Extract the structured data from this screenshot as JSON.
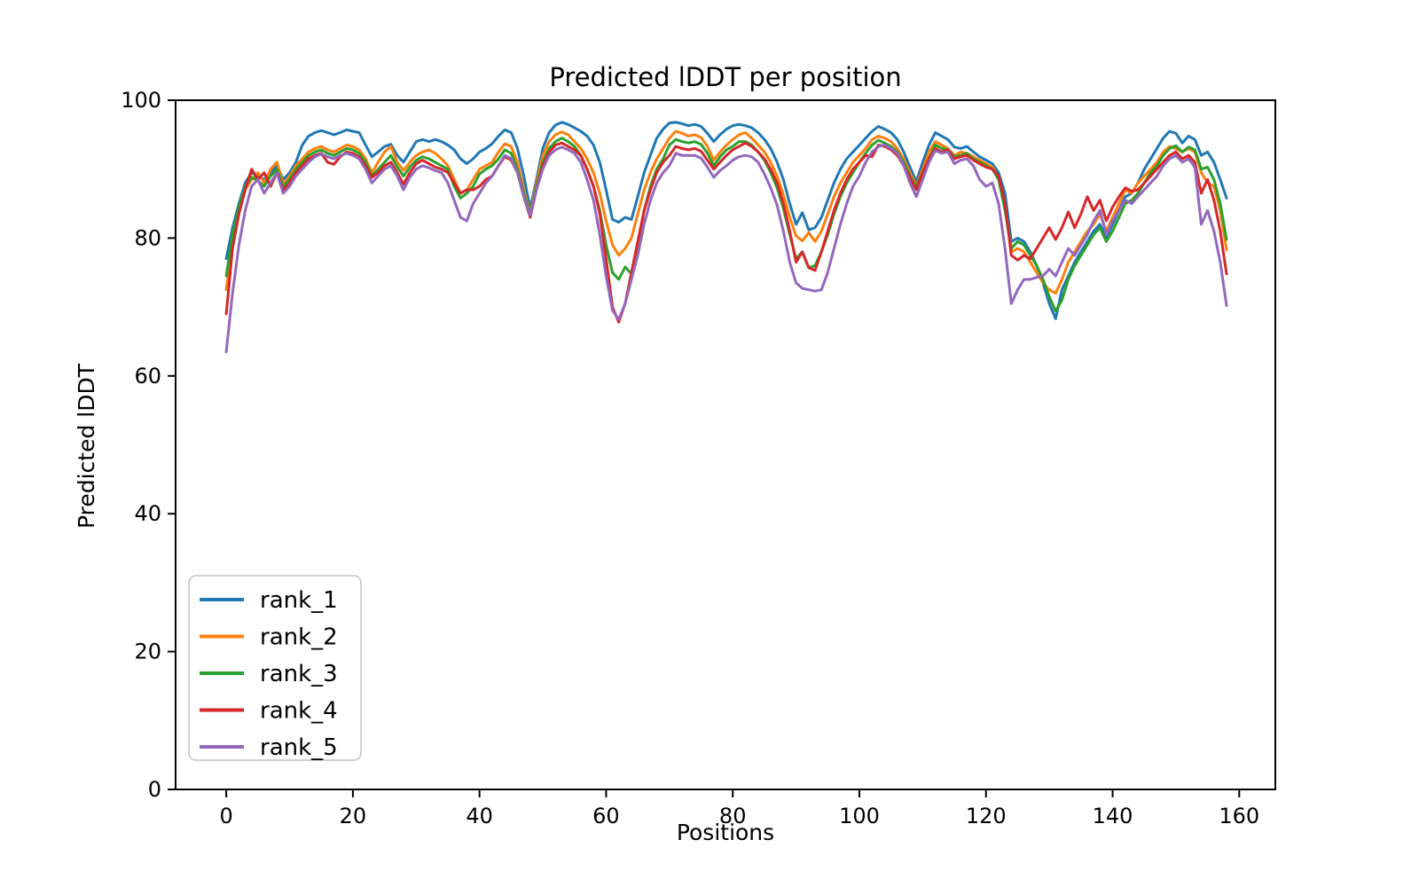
{
  "chart_data": {
    "type": "line",
    "title": "Predicted lDDT per position",
    "xlabel": "Positions",
    "ylabel": "Predicted lDDT",
    "xlim": [
      -8,
      165.7
    ],
    "ylim": [
      0,
      100
    ],
    "xticks": [
      0,
      20,
      40,
      60,
      80,
      100,
      120,
      140,
      160
    ],
    "yticks": [
      0,
      20,
      40,
      60,
      80,
      100
    ],
    "grid": false,
    "legend_position": "lower-left",
    "axis_color": "#000000",
    "legend_border_color": "#cccccc",
    "x_start": 0,
    "x_step": 1,
    "series": [
      {
        "name": "rank_1",
        "color": "#1f77b4",
        "values": [
          77.0,
          81.5,
          85.0,
          88.0,
          89.5,
          89.0,
          88.5,
          89.5,
          90.5,
          88.5,
          89.5,
          91.0,
          93.5,
          94.8,
          95.3,
          95.6,
          95.3,
          95.0,
          95.3,
          95.7,
          95.5,
          95.3,
          93.5,
          91.8,
          92.5,
          93.3,
          93.6,
          92.0,
          91.0,
          92.5,
          94.0,
          94.3,
          94.0,
          94.3,
          94.0,
          93.5,
          92.8,
          91.5,
          90.8,
          91.5,
          92.5,
          93.0,
          93.7,
          94.8,
          95.7,
          95.3,
          93.0,
          89.0,
          84.3,
          88.5,
          93.0,
          95.3,
          96.4,
          96.8,
          96.5,
          96.0,
          95.5,
          94.8,
          93.5,
          91.0,
          87.0,
          82.7,
          82.3,
          83.0,
          82.7,
          86.0,
          89.5,
          92.0,
          94.5,
          95.8,
          96.7,
          96.8,
          96.6,
          96.3,
          96.5,
          96.2,
          95.2,
          94.0,
          95.0,
          95.8,
          96.3,
          96.5,
          96.3,
          96.0,
          95.3,
          94.3,
          93.0,
          91.0,
          88.5,
          85.0,
          82.0,
          83.7,
          81.2,
          81.5,
          83.0,
          85.5,
          88.0,
          90.0,
          91.5,
          92.5,
          93.5,
          94.5,
          95.5,
          96.2,
          95.8,
          95.3,
          94.3,
          92.5,
          90.3,
          88.2,
          91.0,
          93.5,
          95.3,
          94.8,
          94.3,
          93.2,
          93.0,
          93.3,
          92.5,
          91.8,
          91.3,
          90.8,
          89.5,
          86.5,
          79.5,
          80.0,
          79.5,
          78.0,
          76.0,
          73.5,
          70.5,
          68.3,
          72.5,
          74.5,
          76.5,
          78.0,
          79.5,
          81.0,
          82.0,
          80.0,
          82.0,
          84.0,
          86.0,
          86.5,
          88.0,
          90.0,
          91.5,
          93.0,
          94.5,
          95.5,
          95.2,
          93.8,
          94.8,
          94.3,
          92.0,
          92.5,
          91.0,
          88.5,
          85.8
        ]
      },
      {
        "name": "rank_2",
        "color": "#ff7f0e",
        "values": [
          72.5,
          79.5,
          84.0,
          87.0,
          88.5,
          89.5,
          88.0,
          90.0,
          91.0,
          87.8,
          89.0,
          90.5,
          91.5,
          92.5,
          93.0,
          93.3,
          92.8,
          92.5,
          93.0,
          93.5,
          93.3,
          92.8,
          91.5,
          89.5,
          91.0,
          92.5,
          93.3,
          91.0,
          89.8,
          91.0,
          92.0,
          92.5,
          92.8,
          92.3,
          91.5,
          90.5,
          88.5,
          86.5,
          87.0,
          88.5,
          90.0,
          90.5,
          91.0,
          92.5,
          93.7,
          93.3,
          91.0,
          87.0,
          83.7,
          88.0,
          92.0,
          94.0,
          95.0,
          95.4,
          95.0,
          94.0,
          93.0,
          91.5,
          89.5,
          86.5,
          82.5,
          79.0,
          77.5,
          78.5,
          80.0,
          83.5,
          87.0,
          89.5,
          91.5,
          93.0,
          94.5,
          95.5,
          95.2,
          94.8,
          95.0,
          94.6,
          93.3,
          91.3,
          92.5,
          93.5,
          94.3,
          95.0,
          95.3,
          94.5,
          93.5,
          92.5,
          91.0,
          89.0,
          86.3,
          83.0,
          80.3,
          79.6,
          80.8,
          79.5,
          81.0,
          83.5,
          86.0,
          88.0,
          89.5,
          91.0,
          92.0,
          93.0,
          94.3,
          94.8,
          94.5,
          94.0,
          93.0,
          91.5,
          89.5,
          87.6,
          90.0,
          92.5,
          94.0,
          93.5,
          93.0,
          92.0,
          92.5,
          92.3,
          91.8,
          91.3,
          90.8,
          90.3,
          88.8,
          84.5,
          78.0,
          78.5,
          78.0,
          76.5,
          75.0,
          73.5,
          72.5,
          72.0,
          74.0,
          76.5,
          78.0,
          79.5,
          81.0,
          82.0,
          83.5,
          81.0,
          83.0,
          85.0,
          87.0,
          86.5,
          88.0,
          89.0,
          90.0,
          91.0,
          92.5,
          93.3,
          93.0,
          92.5,
          93.0,
          92.5,
          89.5,
          88.0,
          87.5,
          84.0,
          78.3
        ]
      },
      {
        "name": "rank_3",
        "color": "#2ca02c",
        "values": [
          74.5,
          80.5,
          84.5,
          87.5,
          88.8,
          88.3,
          87.5,
          89.0,
          90.0,
          87.5,
          88.5,
          90.0,
          91.0,
          92.0,
          92.5,
          92.8,
          92.3,
          92.0,
          92.5,
          93.0,
          92.8,
          92.3,
          91.0,
          89.0,
          90.0,
          91.0,
          92.0,
          90.3,
          89.0,
          90.3,
          91.3,
          91.8,
          91.5,
          91.0,
          90.5,
          90.0,
          87.5,
          85.8,
          86.5,
          87.5,
          89.3,
          90.0,
          90.5,
          91.5,
          92.8,
          92.3,
          90.0,
          86.5,
          83.5,
          87.5,
          91.0,
          93.0,
          94.0,
          94.5,
          94.0,
          93.3,
          92.0,
          90.0,
          87.5,
          84.0,
          79.0,
          75.0,
          74.0,
          75.8,
          74.8,
          79.0,
          84.0,
          87.5,
          90.0,
          91.5,
          93.5,
          94.3,
          94.0,
          93.8,
          94.0,
          93.6,
          92.3,
          90.5,
          91.8,
          92.8,
          93.3,
          94.0,
          94.0,
          93.5,
          92.5,
          91.3,
          89.5,
          87.3,
          84.3,
          80.5,
          77.0,
          78.0,
          75.7,
          76.0,
          78.0,
          80.5,
          83.5,
          86.0,
          88.0,
          89.5,
          91.0,
          92.3,
          93.5,
          94.2,
          93.8,
          93.3,
          92.5,
          91.0,
          89.0,
          87.4,
          89.5,
          91.5,
          93.5,
          93.0,
          92.8,
          91.8,
          92.0,
          92.3,
          91.5,
          91.0,
          90.5,
          90.0,
          88.5,
          84.0,
          78.5,
          79.5,
          79.0,
          77.5,
          76.0,
          74.0,
          71.5,
          69.4,
          71.0,
          74.0,
          76.0,
          77.5,
          79.0,
          80.5,
          81.5,
          79.5,
          81.0,
          83.0,
          85.0,
          85.5,
          86.5,
          88.0,
          89.5,
          90.5,
          92.0,
          93.0,
          93.4,
          92.5,
          93.2,
          92.8,
          90.0,
          90.3,
          88.5,
          85.0,
          79.8
        ]
      },
      {
        "name": "rank_4",
        "color": "#d62728",
        "values": [
          69.0,
          78.5,
          83.5,
          87.0,
          90.0,
          88.5,
          89.5,
          87.5,
          89.5,
          87.0,
          88.0,
          89.5,
          90.5,
          91.5,
          92.0,
          92.3,
          91.0,
          90.7,
          91.8,
          92.5,
          92.3,
          91.8,
          90.5,
          88.8,
          89.5,
          90.5,
          91.0,
          89.5,
          87.8,
          89.5,
          90.8,
          91.3,
          90.8,
          90.3,
          90.0,
          89.5,
          88.0,
          86.5,
          87.0,
          87.0,
          87.5,
          88.5,
          89.0,
          90.5,
          91.8,
          91.3,
          89.5,
          86.0,
          83.0,
          87.0,
          90.5,
          92.5,
          93.5,
          93.8,
          93.3,
          92.8,
          92.0,
          90.0,
          87.5,
          83.5,
          77.0,
          70.0,
          67.8,
          70.5,
          75.0,
          79.5,
          84.0,
          87.0,
          89.5,
          91.0,
          92.0,
          93.3,
          93.0,
          92.8,
          93.0,
          92.6,
          91.3,
          90.0,
          91.0,
          92.0,
          92.8,
          93.3,
          93.8,
          93.3,
          92.5,
          91.5,
          90.0,
          88.0,
          85.0,
          81.0,
          76.5,
          78.0,
          75.7,
          75.3,
          78.0,
          81.0,
          84.0,
          86.5,
          88.5,
          90.0,
          91.0,
          92.0,
          91.8,
          93.5,
          93.3,
          92.8,
          92.0,
          90.5,
          88.8,
          87.0,
          89.5,
          91.5,
          93.0,
          92.5,
          92.8,
          91.5,
          91.8,
          92.0,
          91.3,
          90.8,
          90.3,
          90.0,
          89.0,
          85.0,
          77.5,
          76.8,
          77.5,
          77.0,
          78.5,
          80.0,
          81.5,
          79.8,
          81.5,
          83.8,
          81.5,
          83.5,
          86.0,
          84.0,
          85.5,
          82.5,
          84.5,
          86.0,
          87.3,
          86.8,
          87.0,
          88.0,
          89.0,
          90.0,
          91.0,
          92.0,
          92.5,
          91.5,
          92.0,
          91.0,
          86.5,
          88.5,
          85.5,
          81.0,
          74.8
        ]
      },
      {
        "name": "rank_5",
        "color": "#9467bd",
        "values": [
          63.5,
          72.0,
          79.0,
          84.0,
          87.5,
          88.5,
          86.5,
          88.0,
          89.5,
          86.5,
          87.5,
          89.0,
          90.0,
          91.0,
          91.8,
          92.2,
          91.8,
          91.5,
          92.0,
          92.3,
          92.0,
          91.5,
          90.0,
          88.0,
          89.0,
          90.0,
          90.5,
          89.0,
          87.0,
          88.8,
          90.0,
          90.5,
          90.2,
          89.8,
          89.5,
          88.0,
          85.5,
          83.0,
          82.5,
          85.0,
          86.5,
          88.0,
          89.0,
          90.5,
          92.0,
          91.5,
          89.5,
          86.0,
          83.3,
          87.0,
          90.0,
          92.0,
          92.8,
          93.2,
          92.8,
          92.3,
          91.0,
          88.5,
          85.5,
          80.5,
          74.5,
          69.5,
          68.2,
          70.5,
          74.0,
          77.5,
          82.0,
          85.5,
          88.0,
          89.5,
          90.5,
          92.3,
          92.0,
          92.0,
          92.0,
          91.6,
          90.3,
          88.8,
          89.8,
          90.5,
          91.3,
          91.8,
          92.0,
          91.8,
          91.0,
          89.3,
          87.3,
          84.8,
          81.0,
          76.5,
          73.5,
          72.7,
          72.5,
          72.3,
          72.5,
          75.0,
          78.5,
          82.0,
          85.0,
          87.5,
          89.0,
          91.0,
          92.5,
          93.3,
          93.5,
          93.0,
          92.3,
          90.5,
          88.0,
          86.0,
          88.5,
          91.0,
          92.7,
          92.3,
          92.5,
          90.8,
          91.3,
          91.5,
          90.5,
          88.5,
          87.5,
          88.0,
          85.0,
          78.5,
          70.5,
          72.5,
          74.0,
          74.0,
          74.3,
          74.5,
          75.5,
          74.5,
          76.5,
          78.5,
          77.5,
          79.0,
          80.5,
          82.5,
          84.0,
          80.5,
          82.5,
          84.0,
          85.5,
          85.0,
          86.0,
          87.0,
          88.0,
          89.0,
          90.5,
          91.5,
          92.0,
          91.0,
          91.5,
          90.3,
          82.0,
          84.0,
          81.0,
          76.5,
          70.2
        ]
      }
    ]
  }
}
